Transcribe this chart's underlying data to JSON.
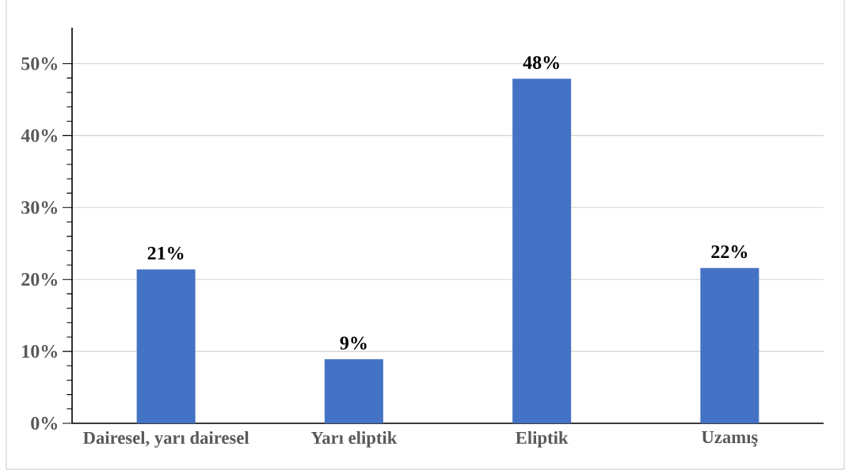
{
  "chart_data": {
    "type": "bar",
    "categories": [
      "Dairesel, yarı dairesel",
      "Yarı eliptik",
      "Eliptik",
      "Uzamış"
    ],
    "values": [
      21.4,
      8.9,
      47.9,
      21.6
    ],
    "value_labels": [
      "21%",
      "9%",
      "48%",
      "22%"
    ],
    "color": "#4472c4",
    "ylim": [
      0,
      55
    ],
    "yticks": [
      {
        "value": 0,
        "label": "0%"
      },
      {
        "value": 10,
        "label": "10%"
      },
      {
        "value": 20,
        "label": "20%"
      },
      {
        "value": 30,
        "label": "30%"
      },
      {
        "value": 40,
        "label": "40%"
      },
      {
        "value": 50,
        "label": "50%"
      }
    ],
    "grid": "y"
  }
}
